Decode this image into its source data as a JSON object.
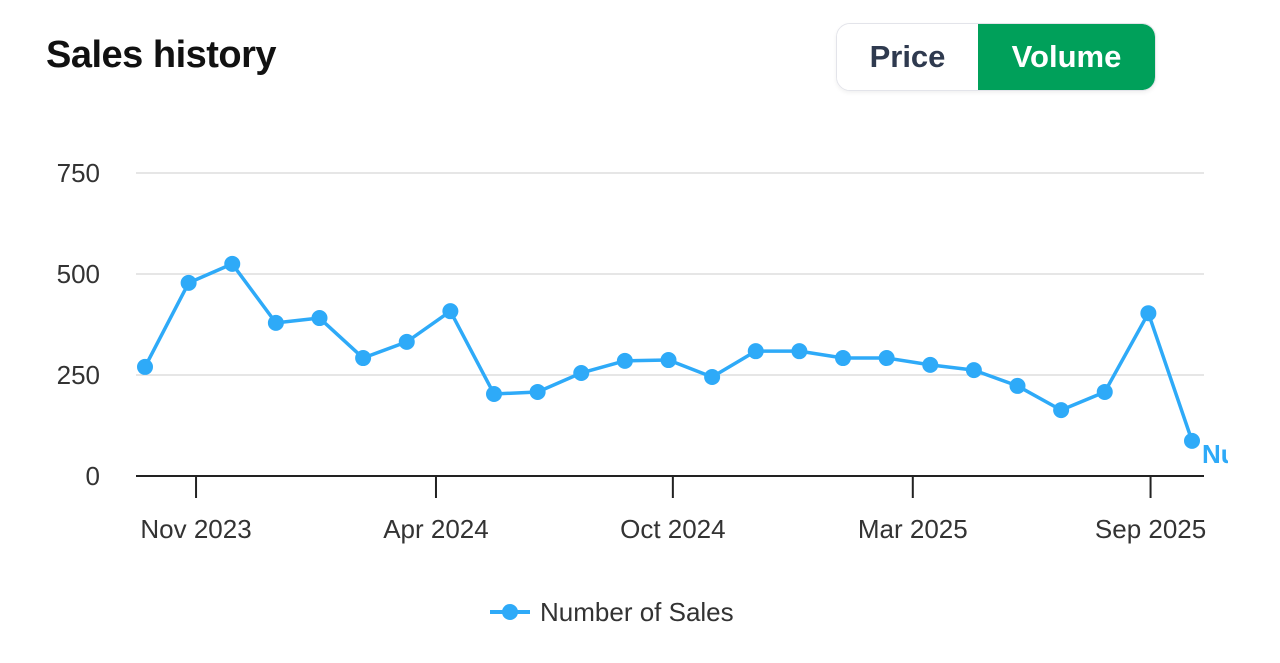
{
  "header": {
    "title": "Sales history"
  },
  "toggle": {
    "price": "Price",
    "volume": "Volume",
    "active": "Volume"
  },
  "colors": {
    "series": "#2eaaf8",
    "accent": "#00a05a",
    "grid": "#dddddd",
    "axis": "#222222"
  },
  "chart_data": {
    "type": "line",
    "title": "Sales history",
    "xlabel": "",
    "ylabel": "",
    "ylim": [
      0,
      750
    ],
    "yticks": [
      0,
      250,
      500,
      750
    ],
    "x": [
      "2023-10",
      "2023-11",
      "2023-12",
      "2024-01",
      "2024-02",
      "2024-03",
      "2024-04",
      "2024-05",
      "2024-06",
      "2024-07",
      "2024-08",
      "2024-09",
      "2024-10",
      "2024-11",
      "2024-12",
      "2025-01",
      "2025-02",
      "2025-03",
      "2025-04",
      "2025-05",
      "2025-06",
      "2025-07",
      "2025-08",
      "2025-09",
      "2025-10"
    ],
    "xticks": [
      {
        "label": "Nov 2023",
        "at": 1.17
      },
      {
        "label": "Apr 2024",
        "at": 6.67
      },
      {
        "label": "Oct 2024",
        "at": 12.1
      },
      {
        "label": "Mar 2025",
        "at": 17.6
      },
      {
        "label": "Sep 2025",
        "at": 23.05
      }
    ],
    "grid": true,
    "legend": "bottom-center",
    "series": [
      {
        "name": "Number of Sales",
        "values": [
          270,
          478,
          525,
          379,
          391,
          292,
          332,
          408,
          203,
          208,
          255,
          285,
          287,
          245,
          309,
          309,
          292,
          292,
          275,
          262,
          223,
          163,
          208,
          403,
          87
        ]
      }
    ]
  }
}
